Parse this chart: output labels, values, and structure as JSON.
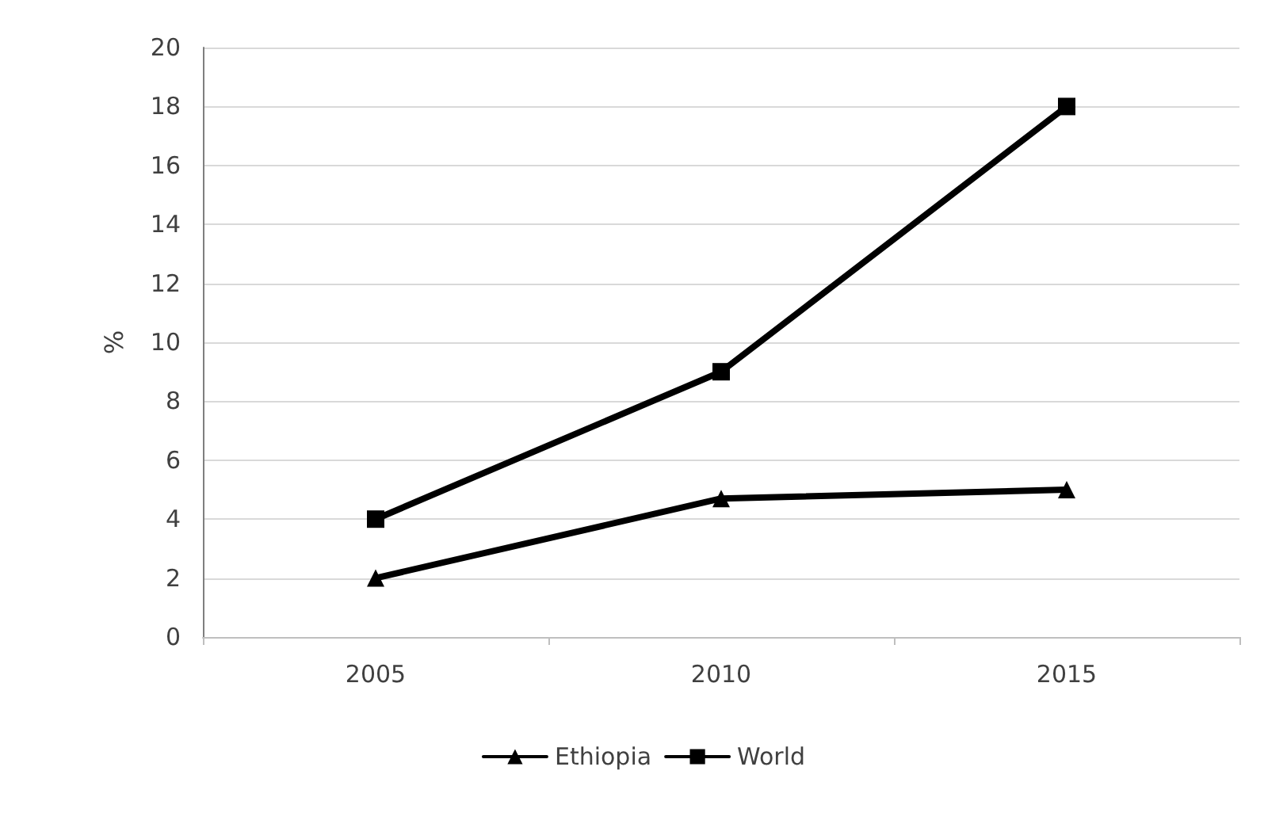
{
  "chart_data": {
    "type": "line",
    "ylabel": "%",
    "categories": [
      "2005",
      "2010",
      "2015"
    ],
    "series": [
      {
        "name": "Ethiopia",
        "color": "#000000",
        "marker": "triangle",
        "values": [
          2,
          4.7,
          5
        ]
      },
      {
        "name": "World",
        "color": "#000000",
        "marker": "square",
        "values": [
          4,
          9,
          18
        ]
      }
    ],
    "ylim": [
      0,
      20
    ],
    "yticks": [
      0,
      2,
      4,
      6,
      8,
      10,
      12,
      14,
      16,
      18,
      20
    ],
    "grid": "y",
    "legend": "bottom"
  }
}
